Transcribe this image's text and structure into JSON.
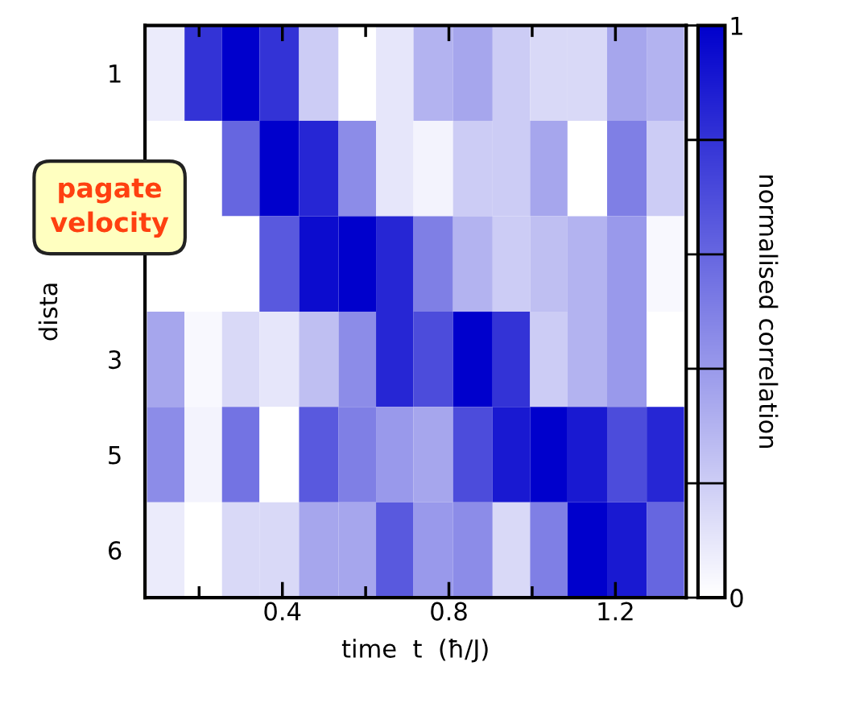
{
  "chart_data": {
    "type": "heatmap",
    "xlabel": "time  t  (ħ/J)",
    "ylabel": "dista",
    "clabel": "normalised correlation",
    "annotations": [
      "pagate\nvelocity"
    ],
    "x": [
      0.12,
      0.21,
      0.3,
      0.39,
      0.49,
      0.58,
      0.67,
      0.76,
      0.86,
      0.95,
      1.04,
      1.13,
      1.23,
      1.32
    ],
    "xlim": [
      0.07,
      1.37
    ],
    "xticks": [
      {
        "value": 0.2,
        "label": null
      },
      0.4,
      {
        "value": 0.6,
        "label": null
      },
      0.8,
      {
        "value": 1.0,
        "label": null
      },
      1.2
    ],
    "y_categories": [
      "1",
      null,
      null,
      "3",
      "5",
      "6"
    ],
    "cells": [
      [
        0.08,
        0.8,
        1.0,
        0.8,
        0.2,
        0.0,
        0.1,
        0.3,
        0.35,
        0.2,
        0.15,
        0.15,
        0.35,
        0.3
      ],
      [
        null,
        null,
        0.6,
        1.0,
        0.85,
        0.45,
        0.1,
        0.05,
        0.2,
        0.2,
        0.35,
        0.0,
        0.5,
        0.2
      ],
      [
        null,
        null,
        0.0,
        0.65,
        0.95,
        1.0,
        0.85,
        0.5,
        0.3,
        0.2,
        0.25,
        0.3,
        0.4,
        0.03
      ],
      [
        0.35,
        0.03,
        0.15,
        0.1,
        0.25,
        0.45,
        0.85,
        0.7,
        1.0,
        0.8,
        0.2,
        0.3,
        0.4,
        0.0
      ],
      [
        0.45,
        0.05,
        0.55,
        0.0,
        0.65,
        0.5,
        0.4,
        0.35,
        0.7,
        0.9,
        1.0,
        0.9,
        0.7,
        0.85
      ],
      [
        0.08,
        0.0,
        0.15,
        0.15,
        0.35,
        0.35,
        0.65,
        0.4,
        0.45,
        0.15,
        0.5,
        1.0,
        0.9,
        0.6
      ]
    ],
    "colors": [
      "#ffffff",
      "#0000cc"
    ],
    "clim": [
      0,
      1
    ],
    "cticks": [
      0,
      {
        "value": 0.2,
        "label": null
      },
      {
        "value": 0.4,
        "label": null
      },
      {
        "value": 0.6,
        "label": null
      },
      {
        "value": 0.8,
        "label": null
      },
      1
    ]
  }
}
